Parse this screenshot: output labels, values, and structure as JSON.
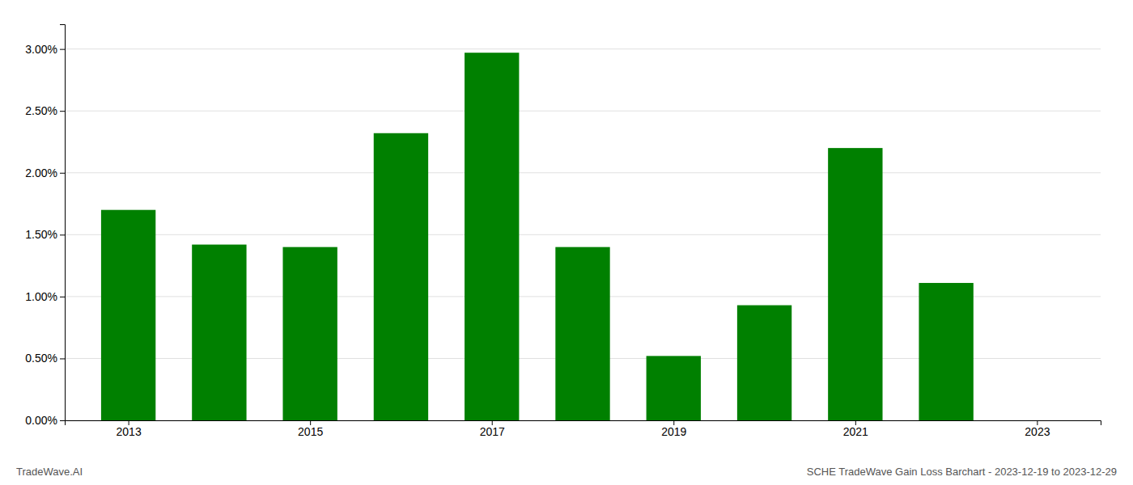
{
  "chart_data": {
    "type": "bar",
    "title": "SCHE TradeWave Gain Loss Barchart - 2023-12-19 to 2023-12-29",
    "annotations": [
      "TradeWave.AI"
    ],
    "x": [
      2013,
      2014,
      2015,
      2016,
      2017,
      2018,
      2019,
      2020,
      2021,
      2022
    ],
    "values": [
      0.017,
      0.0142,
      0.014,
      0.0232,
      0.0297,
      0.014,
      0.0052,
      0.0093,
      0.022,
      0.0111
    ],
    "color": "#008000",
    "xlim": [
      2012.3,
      2023.7
    ],
    "xticks": [
      2013,
      2015,
      2017,
      2019,
      2021,
      2023
    ],
    "ylim": [
      0,
      0.032
    ],
    "yticks": [
      {
        "value": 0.0,
        "label": "0.00%"
      },
      {
        "value": 0.005,
        "label": "0.50%"
      },
      {
        "value": 0.01,
        "label": "1.00%"
      },
      {
        "value": 0.015,
        "label": "1.50%"
      },
      {
        "value": 0.02,
        "label": "2.00%"
      },
      {
        "value": 0.025,
        "label": "2.50%"
      },
      {
        "value": 0.03,
        "label": "3.00%"
      }
    ],
    "grid": true
  }
}
